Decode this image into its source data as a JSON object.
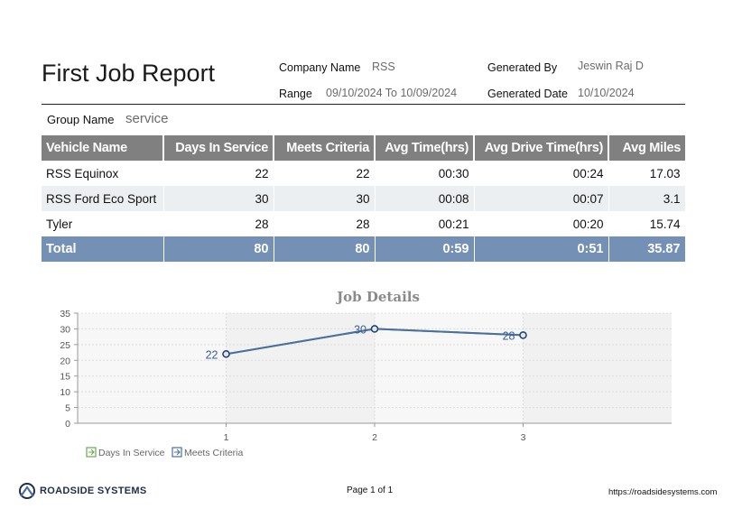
{
  "report": {
    "title": "First Job Report",
    "company_label": "Company Name",
    "company_value": "RSS",
    "generated_by_label": "Generated By",
    "generated_by_value": "Jeswin Raj D",
    "range_label": "Range",
    "range_value": "09/10/2024 To 10/09/2024",
    "generated_date_label": "Generated Date",
    "generated_date_value": "10/10/2024",
    "group_label": "Group Name",
    "group_value": "service"
  },
  "table": {
    "headers": [
      "Vehicle Name",
      "Days In Service",
      "Meets Criteria",
      "Avg Time(hrs)",
      "Avg Drive Time(hrs)",
      "Avg Miles"
    ],
    "rows": [
      [
        "RSS Equinox",
        "22",
        "22",
        "00:30",
        "00:24",
        "17.03"
      ],
      [
        "RSS Ford Eco Sport",
        "30",
        "30",
        "00:08",
        "00:07",
        "3.1"
      ],
      [
        "Tyler",
        "28",
        "28",
        "00:21",
        "00:20",
        "15.74"
      ]
    ],
    "total": [
      "Total",
      "80",
      "80",
      "0:59",
      "0:51",
      "35.87"
    ]
  },
  "chart_data": {
    "type": "line",
    "title": "Job Details",
    "x": [
      1,
      2,
      3
    ],
    "series": [
      {
        "name": "Days In Service",
        "values": [
          22,
          30,
          28
        ],
        "color": "#6aa84f"
      },
      {
        "name": "Meets Criteria",
        "values": [
          22,
          30,
          28
        ],
        "color": "#4a6fa5"
      }
    ],
    "data_labels": [
      "22",
      "30",
      "28"
    ],
    "ylim": [
      0,
      35
    ],
    "yticks": [
      0,
      5,
      10,
      15,
      20,
      25,
      30,
      35
    ],
    "xticks": [
      1,
      2,
      3
    ],
    "xlim": [
      0,
      4
    ],
    "grid": true,
    "legend_position": "bottom-left",
    "xlabel": "",
    "ylabel": ""
  },
  "footer": {
    "brand": "ROADSIDE SYSTEMS",
    "page": "Page 1 of 1",
    "url": "https://roadsidesystems.com"
  },
  "colors": {
    "header_bg": "#808080",
    "total_bg": "#7490b5",
    "alt_row_bg": "#eceff1",
    "line_color": "#4a6fa5"
  },
  "icons": {
    "logo": "roadside-systems-logo-icon"
  }
}
